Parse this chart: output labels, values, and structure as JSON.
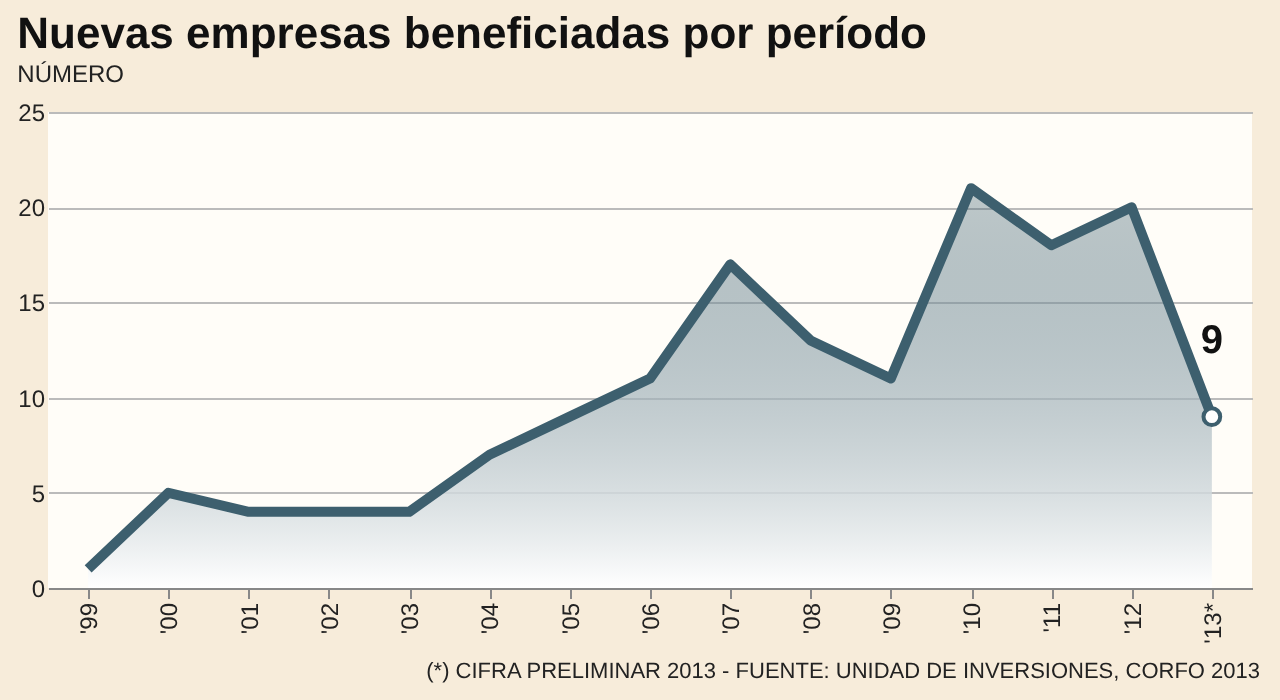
{
  "chart_data": {
    "type": "area",
    "title": "Nuevas empresas beneficiadas por período",
    "subtitle": "NÚMERO",
    "categories": [
      "'99",
      "'00",
      "'01",
      "'02",
      "'03",
      "'04",
      "'05",
      "'06",
      "'07",
      "'08",
      "'09",
      "'10",
      "'11",
      "'12",
      "'13*"
    ],
    "values": [
      1,
      5,
      4,
      4,
      4,
      7,
      9,
      11,
      17,
      13,
      11,
      21,
      18,
      20,
      9
    ],
    "value_labels": [
      null,
      null,
      null,
      null,
      null,
      null,
      null,
      null,
      null,
      null,
      null,
      null,
      null,
      null,
      "9"
    ],
    "color": "#3d5f6e",
    "ylim": [
      0,
      25
    ],
    "yticks": [
      0,
      5,
      10,
      15,
      20,
      25
    ],
    "grid": "y",
    "annotations": [
      "(*) CIFRA PRELIMINAR 2013 - FUENTE: UNIDAD DE INVERSIONES, CORFO 2013"
    ]
  }
}
